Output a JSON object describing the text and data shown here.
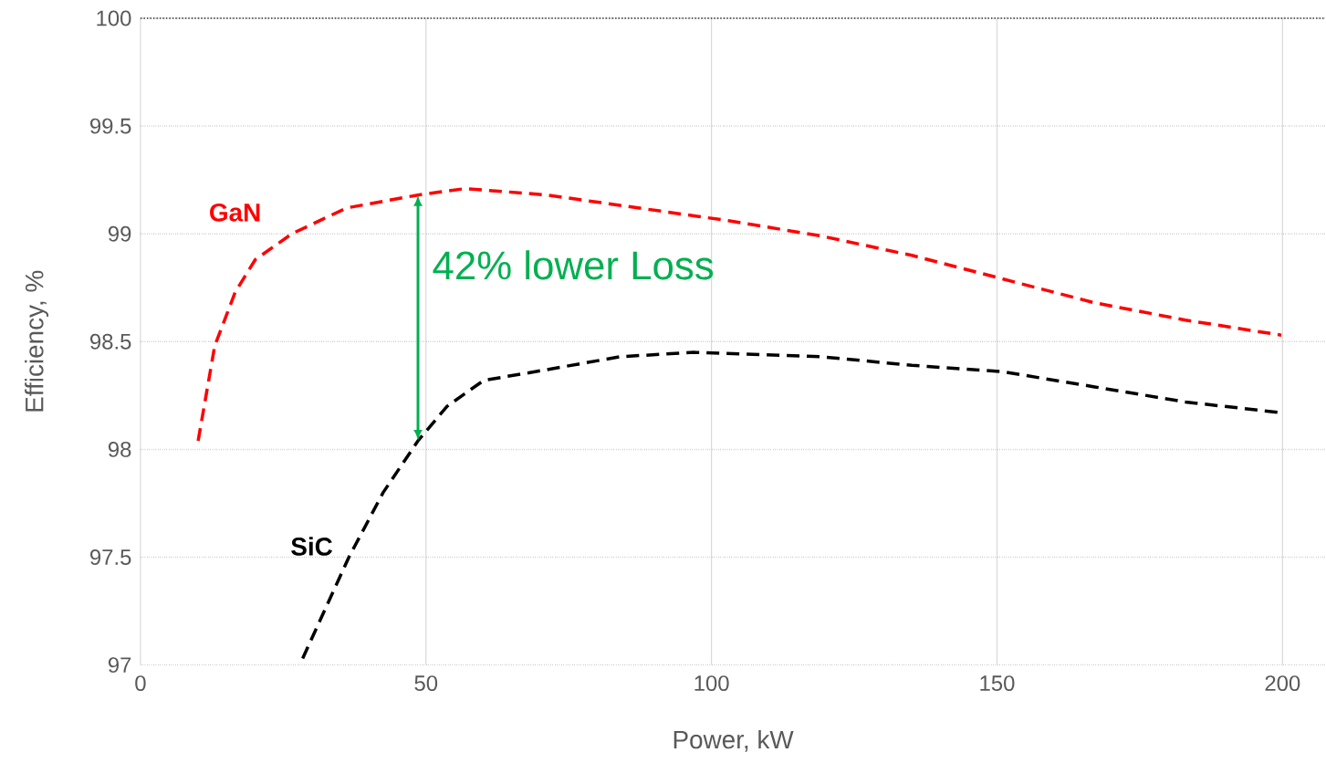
{
  "chart_data": {
    "type": "line",
    "xlabel": "Power, kW",
    "ylabel": "Efficiency, %",
    "xlim": [
      0,
      207.5
    ],
    "ylim": [
      97,
      100
    ],
    "xticks": [
      0,
      50,
      100,
      150,
      200
    ],
    "yticks": [
      97,
      97.5,
      98,
      98.5,
      99,
      99.5,
      100
    ],
    "grid": true,
    "legend": false,
    "marker": "none",
    "line_style": "dashed",
    "series": [
      {
        "name": "GaN",
        "color": "#ff0000",
        "x": [
          10.1,
          13,
          16.6,
          20.1,
          26.5,
          36.1,
          48.6,
          56.9,
          71.2,
          87.2,
          103.2,
          119.2,
          135.1,
          151.1,
          167.1,
          183,
          199.8
        ],
        "values": [
          98.04,
          98.48,
          98.73,
          98.88,
          99.0,
          99.12,
          99.18,
          99.21,
          99.18,
          99.12,
          99.06,
          98.99,
          98.9,
          98.79,
          98.68,
          98.6,
          98.53
        ]
      },
      {
        "name": "SiC",
        "color": "#000000",
        "x": [
          28.4,
          36.5,
          42.5,
          48.6,
          53.7,
          60.1,
          71.2,
          84,
          96.8,
          119.2,
          135.1,
          151.1,
          167.1,
          183,
          199.8
        ],
        "values": [
          97.03,
          97.5,
          97.8,
          98.04,
          98.2,
          98.32,
          98.37,
          98.43,
          98.45,
          98.43,
          98.39,
          98.36,
          98.29,
          98.22,
          98.17
        ]
      }
    ],
    "annotations": [
      "42% lower Loss"
    ]
  }
}
